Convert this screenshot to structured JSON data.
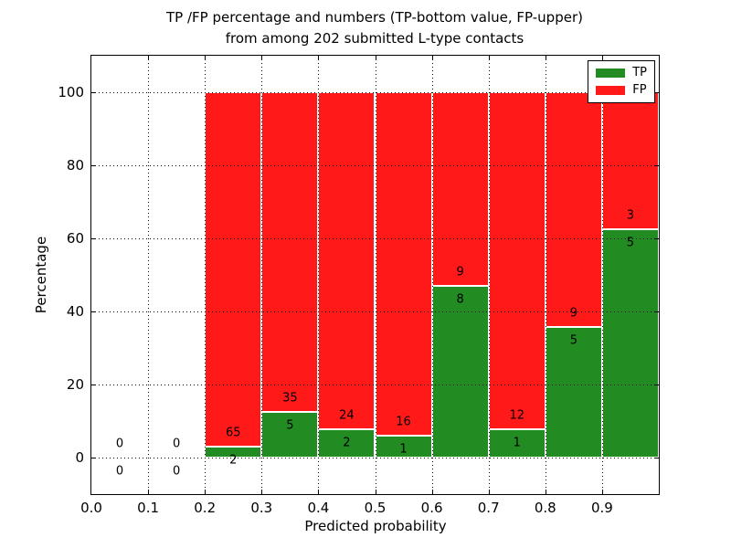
{
  "figure": {
    "title_line1": "TP /FP percentage and numbers (TP-bottom value, FP-upper)",
    "title_line2": "from among 202 submitted L-type contacts"
  },
  "legend": {
    "position": "upper right",
    "items": [
      {
        "label": "TP",
        "color": "#228b22"
      },
      {
        "label": "FP",
        "color": "#ff1919"
      }
    ]
  },
  "chart_data": {
    "type": "bar",
    "stacked": true,
    "title": "TP /FP percentage and numbers (TP-bottom value, FP-upper) from among 202 submitted L-type contacts",
    "xlabel": "Predicted probability",
    "ylabel": "Percentage",
    "xlim": [
      0.0,
      1.0
    ],
    "ylim": [
      -10,
      110
    ],
    "bin_width": 0.1,
    "grid": "dotted",
    "total_contacts": 202,
    "xtick_values": [
      0.0,
      0.1,
      0.2,
      0.3,
      0.4,
      0.5,
      0.6,
      0.7,
      0.8,
      0.9
    ],
    "xtick_labels": [
      "0.0",
      "0.1",
      "0.2",
      "0.3",
      "0.4",
      "0.5",
      "0.6",
      "0.7",
      "0.8",
      "0.9"
    ],
    "ytick_values": [
      0,
      20,
      40,
      60,
      80,
      100
    ],
    "ytick_labels": [
      "0",
      "20",
      "40",
      "60",
      "80",
      "100"
    ],
    "series": [
      {
        "name": "TP",
        "color": "#228b22",
        "values": [
          0,
          0,
          2,
          5,
          2,
          1,
          8,
          1,
          5,
          5
        ]
      },
      {
        "name": "FP",
        "color": "#ff1919",
        "values": [
          0,
          0,
          65,
          35,
          24,
          16,
          9,
          12,
          9,
          3
        ]
      }
    ],
    "bins": [
      {
        "x0": 0.0,
        "x1": 0.1,
        "tp": 0,
        "fp": 0,
        "tp_pct": 0,
        "fp_pct": 0
      },
      {
        "x0": 0.1,
        "x1": 0.2,
        "tp": 0,
        "fp": 0,
        "tp_pct": 0,
        "fp_pct": 0
      },
      {
        "x0": 0.2,
        "x1": 0.3,
        "tp": 2,
        "fp": 65,
        "tp_pct": 2.99,
        "fp_pct": 97.01
      },
      {
        "x0": 0.3,
        "x1": 0.4,
        "tp": 5,
        "fp": 35,
        "tp_pct": 12.5,
        "fp_pct": 87.5
      },
      {
        "x0": 0.4,
        "x1": 0.5,
        "tp": 2,
        "fp": 24,
        "tp_pct": 7.69,
        "fp_pct": 92.31
      },
      {
        "x0": 0.5,
        "x1": 0.6,
        "tp": 1,
        "fp": 16,
        "tp_pct": 5.88,
        "fp_pct": 94.12
      },
      {
        "x0": 0.6,
        "x1": 0.7,
        "tp": 8,
        "fp": 9,
        "tp_pct": 47.06,
        "fp_pct": 52.94
      },
      {
        "x0": 0.7,
        "x1": 0.8,
        "tp": 1,
        "fp": 12,
        "tp_pct": 7.69,
        "fp_pct": 92.31
      },
      {
        "x0": 0.8,
        "x1": 0.9,
        "tp": 5,
        "fp": 9,
        "tp_pct": 35.71,
        "fp_pct": 64.29
      },
      {
        "x0": 0.9,
        "x1": 1.0,
        "tp": 5,
        "fp": 3,
        "tp_pct": 62.5,
        "fp_pct": 37.5
      }
    ]
  }
}
